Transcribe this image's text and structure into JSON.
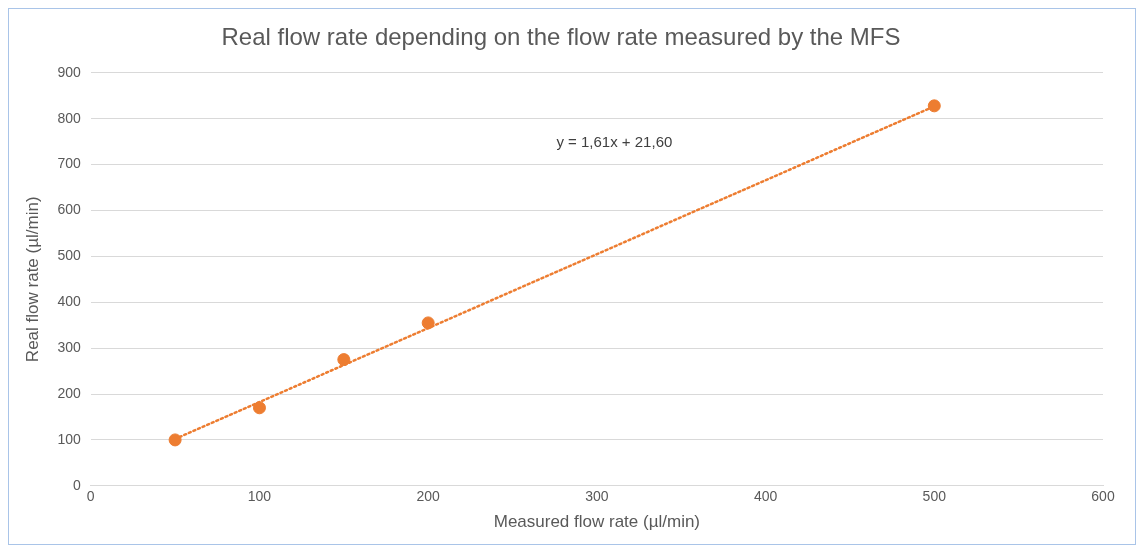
{
  "chart_data": {
    "type": "scatter",
    "title": "Real flow rate depending on the flow rate measured by the MFS",
    "xlabel": "Measured flow rate (µl/min)",
    "ylabel": "Real flow rate (µl/min)",
    "x": [
      50,
      100,
      150,
      200,
      500
    ],
    "series": [
      {
        "type": "scatter",
        "color": "#ed7d31",
        "values": [
          100,
          170,
          275,
          355,
          828
        ]
      },
      {
        "type": "line",
        "color": "#ed7d31",
        "x": [
          50,
          500
        ],
        "values": [
          102,
          827
        ],
        "line_style": "dotted",
        "marker": "none"
      }
    ],
    "marker": "circle",
    "xlim": [
      0,
      600
    ],
    "xticks": [
      0,
      100,
      200,
      300,
      400,
      500,
      600
    ],
    "ylim": [
      0,
      900
    ],
    "yticks": [
      0,
      100,
      200,
      300,
      400,
      500,
      600,
      700,
      800,
      900
    ],
    "grid": "y",
    "legend": false,
    "annotations": [
      "y = 1,61x + 21,60"
    ]
  }
}
